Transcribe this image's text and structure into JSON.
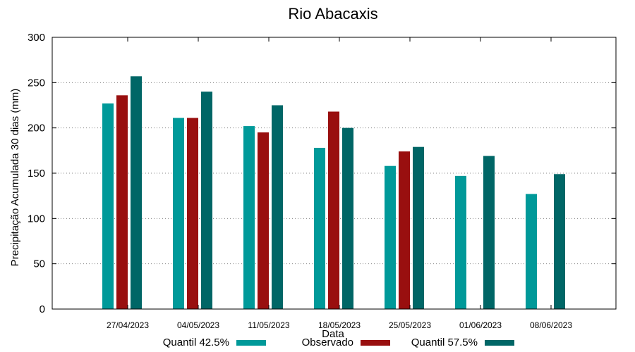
{
  "chart_data": {
    "type": "bar",
    "title": "Rio Abacaxis",
    "xlabel": "Data",
    "ylabel": "Precipitação Acumulada 30 dias (mm)",
    "ylim": [
      0,
      300
    ],
    "yticks": [
      0,
      50,
      100,
      150,
      200,
      250,
      300
    ],
    "grid": "horizontal-dotted",
    "categories": [
      "27/04/2023",
      "04/05/2023",
      "11/05/2023",
      "18/05/2023",
      "25/05/2023",
      "01/06/2023",
      "08/06/2023"
    ],
    "series": [
      {
        "name": "Quantil 42.5%",
        "color": "#009999",
        "values": [
          227,
          211,
          202,
          178,
          158,
          147,
          127
        ]
      },
      {
        "name": "Observado",
        "color": "#990f0f",
        "values": [
          236,
          211,
          195,
          218,
          174,
          null,
          null
        ]
      },
      {
        "name": "Quantil 57.5%",
        "color": "#006666",
        "values": [
          257,
          240,
          225,
          200,
          179,
          169,
          149
        ]
      }
    ],
    "legend_position": "bottom"
  }
}
